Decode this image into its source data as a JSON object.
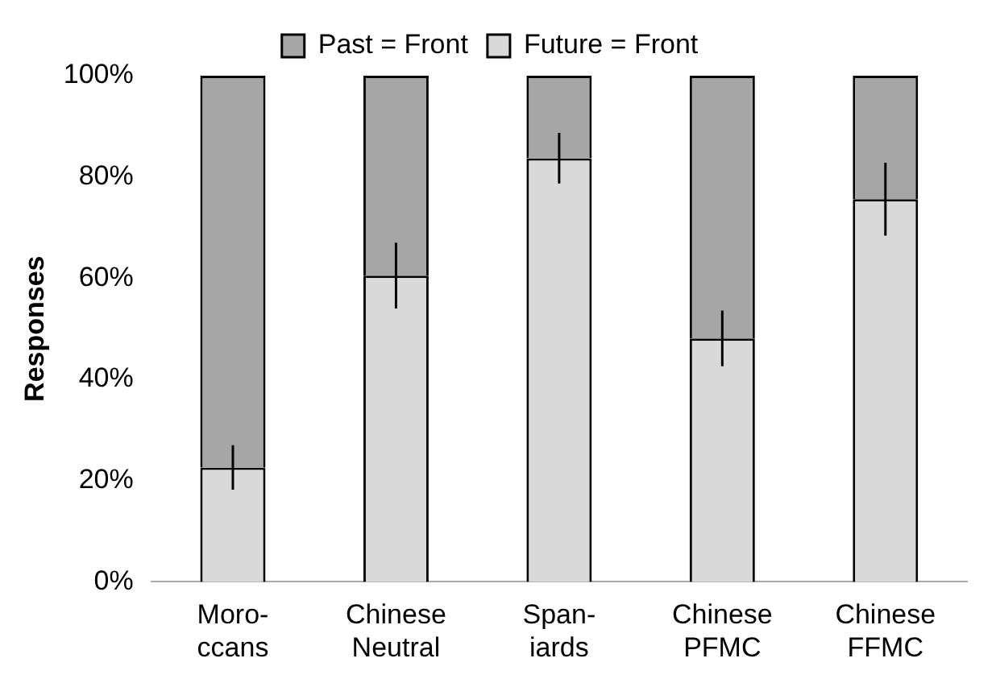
{
  "chart_data": {
    "type": "bar",
    "stacked": true,
    "ylabel": "Responses",
    "categories": [
      "Moro-\nccans",
      "Chinese\nNeutral",
      "Span-\niards",
      "Chinese\nPFMC",
      "Chinese\nFFMC"
    ],
    "series": [
      {
        "name": "Future = Front",
        "color": "#d9d9d9",
        "values": [
          22.6,
          60.5,
          83.7,
          48.1,
          75.6
        ],
        "errors": [
          4.4,
          6.5,
          5,
          5.5,
          7.2
        ]
      },
      {
        "name": "Past = Front",
        "color": "#a6a6a6",
        "values": [
          77.4,
          39.5,
          16.3,
          51.9,
          24.4
        ]
      }
    ],
    "ylim": [
      0,
      100
    ],
    "yticks": [
      {
        "value": 0,
        "label": "0%"
      },
      {
        "value": 20,
        "label": "20%"
      },
      {
        "value": 40,
        "label": "40%"
      },
      {
        "value": 60,
        "label": "60%"
      },
      {
        "value": 80,
        "label": "80%"
      },
      {
        "value": 100,
        "label": "100%"
      }
    ],
    "grid": false,
    "legend": "top"
  }
}
